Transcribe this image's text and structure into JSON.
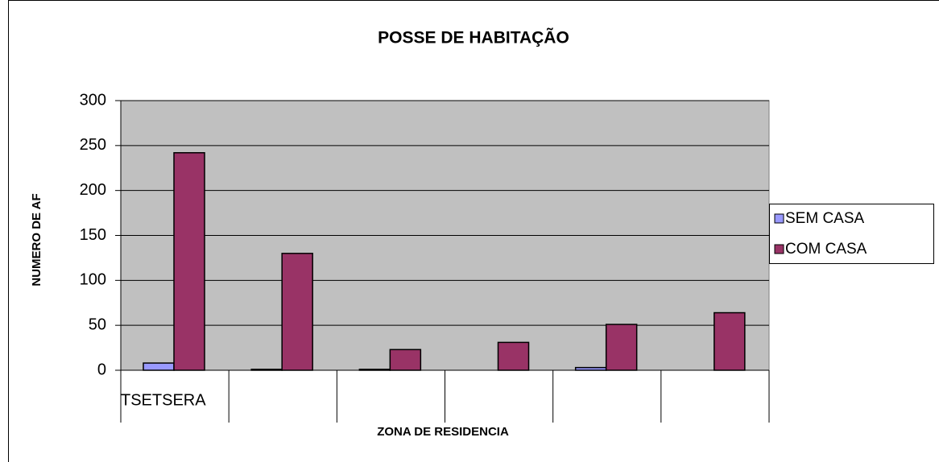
{
  "chart_data": {
    "type": "bar",
    "title": "POSSE DE HABITAÇÃO",
    "x_label": "ZONA DE RESIDENCIA",
    "y_label": "NUMERO DE AF",
    "categories": [
      "TSETSERA",
      null,
      null,
      null,
      null,
      null
    ],
    "series": [
      {
        "name": "SEM CASA",
        "color": "#9999ff",
        "values": [
          8,
          1,
          1,
          0,
          3,
          0
        ]
      },
      {
        "name": "COM CASA",
        "color": "#993366",
        "values": [
          242,
          130,
          23,
          31,
          51,
          64
        ]
      }
    ],
    "ylim": [
      0,
      300
    ],
    "yticks": [
      0,
      50,
      100,
      150,
      200,
      250,
      300
    ],
    "grid": true,
    "plot_background": "#c0c0c0",
    "legend": "right"
  }
}
